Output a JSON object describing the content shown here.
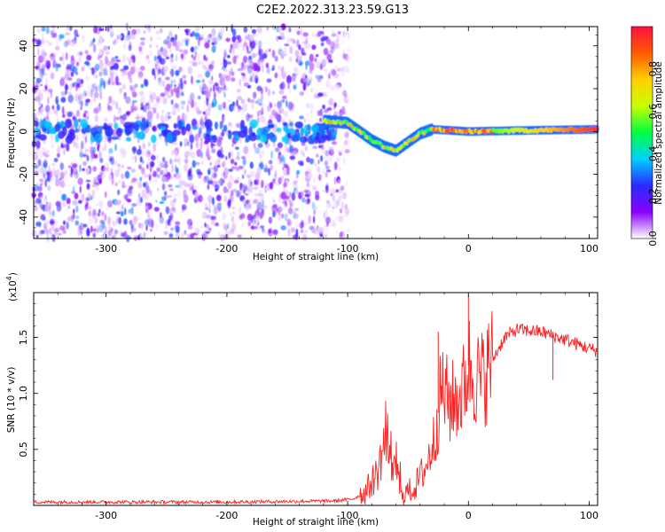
{
  "title": "C2E2.2022.313.23.59.G13",
  "chart_data": [
    {
      "type": "heatmap",
      "xlabel": "Height of straight line (km)",
      "ylabel": "Frequency (Hz)",
      "xlim": [
        -360,
        107
      ],
      "ylim": [
        -50,
        49
      ],
      "x_ticks": [
        -300,
        -200,
        -100,
        0,
        100
      ],
      "x_tick_labels": [
        "-300",
        "-200",
        "-100",
        "0",
        "100"
      ],
      "y_ticks": [
        -40,
        -20,
        0,
        20,
        40
      ],
      "y_tick_labels": [
        "-40",
        "-20",
        "0",
        "20",
        "40"
      ],
      "colorbar": {
        "label": "Normalized spectral amplitude",
        "range": [
          0,
          1
        ],
        "ticks": [
          0.0,
          0.2,
          0.4,
          0.6,
          0.8
        ],
        "tick_labels": [
          "0.0",
          "0.2",
          "0.4",
          "0.6",
          "0.8"
        ],
        "colors": [
          "#ffffff",
          "#8a00ff",
          "#2a2aff",
          "#00d0ff",
          "#00ff40",
          "#c8ff00",
          "#ffd000",
          "#ff5a00",
          "#ff1040"
        ]
      },
      "ridge": [
        {
          "x": -120,
          "y": 5
        },
        {
          "x": -100,
          "y": 4
        },
        {
          "x": -90,
          "y": 0
        },
        {
          "x": -80,
          "y": -4
        },
        {
          "x": -70,
          "y": -7
        },
        {
          "x": -60,
          "y": -9
        },
        {
          "x": -50,
          "y": -5
        },
        {
          "x": -40,
          "y": -1
        },
        {
          "x": -30,
          "y": 1
        },
        {
          "x": 0,
          "y": 0
        },
        {
          "x": 50,
          "y": 0.5
        },
        {
          "x": 107,
          "y": 1
        }
      ]
    },
    {
      "type": "line",
      "xlabel": "Height of straight line (km)",
      "ylabel": "SNR (10 * v/v)",
      "y_scale_label": "(x10",
      "y_scale_exp": "4",
      "xlim": [
        -360,
        107
      ],
      "ylim": [
        0,
        1.9
      ],
      "x_ticks": [
        -300,
        -200,
        -100,
        0,
        100
      ],
      "x_tick_labels": [
        "-300",
        "-200",
        "-100",
        "0",
        "100"
      ],
      "y_ticks": [
        0.5,
        1.0,
        1.5
      ],
      "y_tick_labels": [
        "0.5",
        "1.0",
        "1.5"
      ],
      "color": "#ff2020",
      "series_points": [
        {
          "x": -360,
          "y": 0.03
        },
        {
          "x": -200,
          "y": 0.03
        },
        {
          "x": -110,
          "y": 0.04
        },
        {
          "x": -95,
          "y": 0.06
        },
        {
          "x": -85,
          "y": 0.12
        },
        {
          "x": -75,
          "y": 0.3
        },
        {
          "x": -68,
          "y": 0.65
        },
        {
          "x": -62,
          "y": 0.35
        },
        {
          "x": -55,
          "y": 0.1
        },
        {
          "x": -45,
          "y": 0.15
        },
        {
          "x": -35,
          "y": 0.35
        },
        {
          "x": -28,
          "y": 0.6
        },
        {
          "x": -22,
          "y": 1.05
        },
        {
          "x": -15,
          "y": 0.9
        },
        {
          "x": -5,
          "y": 1.0
        },
        {
          "x": 0,
          "y": 1.25
        },
        {
          "x": 10,
          "y": 1.1
        },
        {
          "x": 20,
          "y": 1.3
        },
        {
          "x": 30,
          "y": 1.5
        },
        {
          "x": 40,
          "y": 1.57
        },
        {
          "x": 60,
          "y": 1.55
        },
        {
          "x": 80,
          "y": 1.48
        },
        {
          "x": 100,
          "y": 1.4
        },
        {
          "x": 107,
          "y": 1.38
        }
      ],
      "spikes": [
        {
          "x": 0,
          "y": 1.88
        },
        {
          "x": -25,
          "y": 1.55
        },
        {
          "x": 70,
          "y": 1.12
        }
      ]
    }
  ]
}
